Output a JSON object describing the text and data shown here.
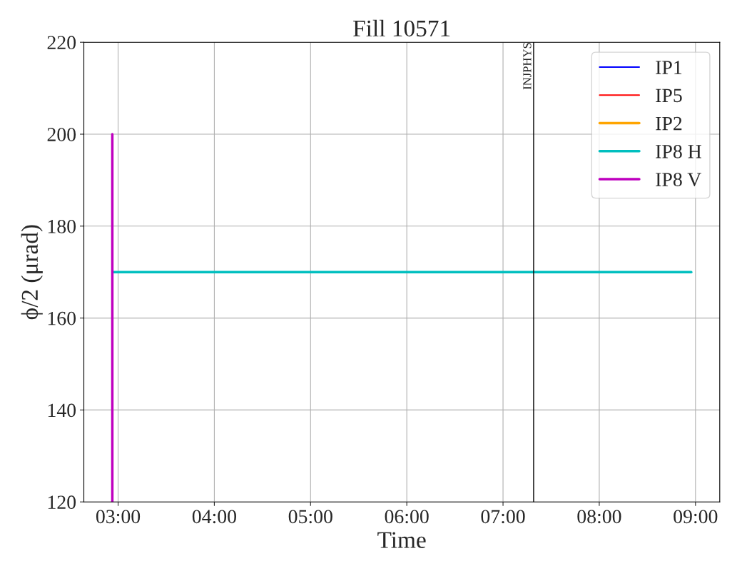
{
  "chart_data": {
    "type": "line",
    "title": "Fill 10571",
    "xlabel": "Time",
    "ylabel": "ϕ/2 (μrad)",
    "xlim": [
      2.644,
      9.252
    ],
    "xticks": [
      {
        "value": 3,
        "label": "03:00"
      },
      {
        "value": 4,
        "label": "04:00"
      },
      {
        "value": 5,
        "label": "05:00"
      },
      {
        "value": 6,
        "label": "06:00"
      },
      {
        "value": 7,
        "label": "07:00"
      },
      {
        "value": 8,
        "label": "08:00"
      },
      {
        "value": 9,
        "label": "09:00"
      }
    ],
    "ylim": [
      120,
      220
    ],
    "yticks": [
      120,
      140,
      160,
      180,
      200,
      220
    ],
    "grid": true,
    "legend": "top right",
    "ref_lines": [
      {
        "axis": "x",
        "value": 7.318,
        "label": "INJPHYS",
        "color": "#000000"
      }
    ],
    "series": [
      {
        "name": "IP1",
        "color": "#0000ff"
      },
      {
        "name": "IP5",
        "color": "#ff0000"
      },
      {
        "name": "IP2",
        "color": "#ffa500"
      },
      {
        "name": "IP8 H",
        "color": "#00bfbf",
        "x": [
          2.95,
          8.956
        ],
        "values": [
          170,
          170
        ]
      },
      {
        "name": "IP8 V",
        "color": "#bf00bf",
        "x": [
          2.94,
          2.94
        ],
        "values": [
          200,
          120
        ]
      }
    ]
  }
}
